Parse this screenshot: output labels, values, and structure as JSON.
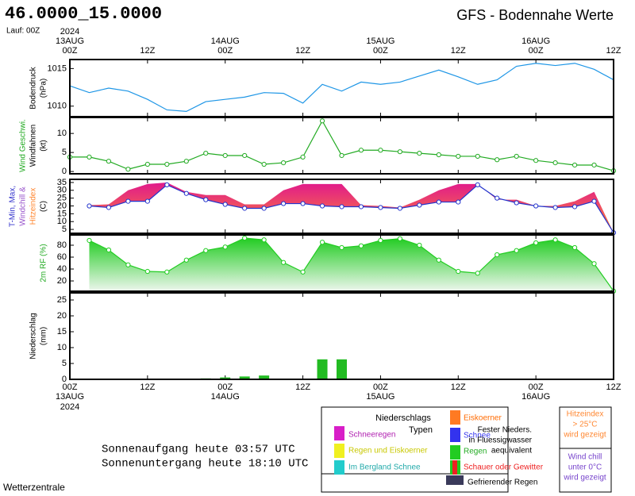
{
  "header": {
    "location": "46.0000_15.0000",
    "run": "Lauf: 00Z",
    "title": "GFS - Bodennahe Werte"
  },
  "time_axis": {
    "xlim": [
      0,
      84
    ],
    "xticks": [
      {
        "value": 0,
        "label": "00Z"
      },
      {
        "value": 12,
        "label": "12Z"
      },
      {
        "value": 24,
        "label": "00Z"
      },
      {
        "value": 36,
        "label": "12Z"
      },
      {
        "value": 48,
        "label": "00Z"
      },
      {
        "value": 60,
        "label": "12Z"
      },
      {
        "value": 72,
        "label": "00Z"
      },
      {
        "value": 84,
        "label": "12Z"
      }
    ],
    "dates": [
      {
        "value": 0,
        "label": "13AUG"
      },
      {
        "value": 24,
        "label": "14AUG"
      },
      {
        "value": 48,
        "label": "15AUG"
      },
      {
        "value": 72,
        "label": "16AUG"
      }
    ],
    "year": "2024"
  },
  "chart_data": [
    {
      "type": "line",
      "ylabel": [
        "Bodendruck",
        "(hPa)"
      ],
      "ylabel_colors": [
        "#000",
        "#000"
      ],
      "color": "#1e96e6",
      "markers": false,
      "x": [
        0,
        3,
        6,
        9,
        12,
        15,
        18,
        21,
        24,
        27,
        30,
        33,
        36,
        39,
        42,
        45,
        48,
        51,
        54,
        57,
        60,
        63,
        66,
        69,
        72,
        75,
        78,
        81,
        84
      ],
      "values": [
        1012.7,
        1011.8,
        1012.4,
        1012.0,
        1010.9,
        1009.5,
        1009.3,
        1010.6,
        1010.9,
        1011.2,
        1011.8,
        1011.7,
        1010.4,
        1012.9,
        1012.0,
        1013.2,
        1012.9,
        1013.2,
        1014.0,
        1014.8,
        1013.9,
        1012.9,
        1013.5,
        1015.3,
        1015.7,
        1015.4,
        1015.7,
        1014.9,
        1013.5
      ],
      "ylim": [
        1008.6,
        1016.2
      ],
      "yticks": [
        1010,
        1015
      ]
    },
    {
      "type": "line",
      "ylabel": [
        "Wind Geschwi.",
        "Windfahnen",
        "(kt)"
      ],
      "ylabel_colors": [
        "#22aa22",
        "#000",
        "#000"
      ],
      "color": "#22aa22",
      "markers": true,
      "x": [
        0,
        3,
        6,
        9,
        12,
        15,
        18,
        21,
        24,
        27,
        30,
        33,
        36,
        39,
        42,
        45,
        48,
        51,
        54,
        57,
        60,
        63,
        66,
        69,
        72,
        75,
        78,
        81,
        84
      ],
      "values": [
        3.8,
        3.8,
        2.7,
        0.6,
        1.9,
        1.9,
        2.7,
        4.8,
        4.2,
        4.2,
        1.9,
        2.3,
        3.8,
        13.3,
        4.2,
        5.6,
        5.6,
        5.2,
        4.8,
        4.4,
        4.0,
        4.0,
        3.1,
        4.0,
        2.9,
        2.3,
        1.7,
        1.7,
        0.2
      ],
      "ylim": [
        -0.6,
        14.2
      ],
      "yticks": [
        0,
        5,
        10
      ]
    },
    {
      "type": "band",
      "ylabel": [
        "T-Min, Max,",
        "Windchill &",
        "Hitzeindex",
        "(C)"
      ],
      "ylabel_colors": [
        "#3333cc",
        "#9955cc",
        "#ff8833",
        "#000"
      ],
      "color": "#2233cc",
      "markers": true,
      "upper_colors": [
        "#e0198c",
        "#ff8833"
      ],
      "x": [
        0,
        3,
        6,
        9,
        12,
        15,
        18,
        21,
        24,
        27,
        30,
        33,
        36,
        39,
        42,
        45,
        48,
        51,
        54,
        57,
        60,
        63,
        66,
        69,
        72,
        75,
        78,
        81,
        84
      ],
      "values": [
        null,
        20,
        19,
        23,
        23,
        33.5,
        28,
        24,
        21,
        18.5,
        18.5,
        21.5,
        21.5,
        20,
        19.5,
        19.5,
        19,
        18.5,
        20.5,
        22.5,
        22.5,
        33.5,
        25,
        22,
        20,
        19,
        19.5,
        23,
        2.9
      ],
      "upper_values": [
        null,
        20.5,
        21,
        30,
        34,
        35,
        29,
        27,
        27,
        21,
        21,
        30,
        34,
        34,
        34,
        20.5,
        20,
        19,
        24,
        30,
        34,
        34,
        24,
        24,
        20,
        20,
        23,
        29,
        3
      ],
      "ylim": [
        2.5,
        37
      ],
      "yticks": [
        5,
        10,
        15,
        20,
        25,
        30,
        35
      ]
    },
    {
      "type": "area",
      "ylabel": [
        "2m RF (%)"
      ],
      "ylabel_colors": [
        "#22aa22"
      ],
      "color": "#22cc22",
      "markers": true,
      "x": [
        0,
        3,
        6,
        9,
        12,
        15,
        18,
        21,
        24,
        27,
        30,
        33,
        36,
        39,
        42,
        45,
        48,
        51,
        54,
        57,
        60,
        63,
        66,
        69,
        72,
        75,
        78,
        81,
        84
      ],
      "values": [
        null,
        88,
        72,
        47,
        36,
        35,
        55,
        71,
        77,
        92,
        89,
        51,
        35,
        85,
        76,
        79,
        88,
        91,
        80,
        55,
        36,
        33,
        64,
        71,
        84,
        89,
        76,
        49,
        3
      ],
      "ylim": [
        2.7,
        97.3
      ],
      "yticks": [
        20,
        40,
        60,
        80
      ]
    },
    {
      "type": "bar",
      "ylabel": [
        "Niederschlag",
        "(mm)"
      ],
      "ylabel_colors": [
        "#000",
        "#000"
      ],
      "color": "#22bb22",
      "x": [
        21,
        24,
        27,
        30,
        39,
        42
      ],
      "values": [
        0.3,
        0.6,
        0.9,
        1.2,
        6.3,
        6.3
      ],
      "ylim": [
        0,
        27.25
      ],
      "yticks": [
        0,
        5,
        10,
        15,
        20,
        25
      ]
    }
  ],
  "sun": {
    "rise": "Sonnenaufgang heute 03:57 UTC",
    "set": "Sonnenuntergang heute 18:10 UTC"
  },
  "legend": {
    "title": [
      "Niederschlags",
      "Typen"
    ],
    "schneeregen": "Schneeregen",
    "regen_eis": "Regen und Eiskoerner",
    "bergland": "Im Bergland Schnee",
    "eiskoerner": "Eiskoerner",
    "schnee": "Schnee",
    "fester": [
      "Fester Nieders.",
      "in Fluessigwasser",
      "aequivalent"
    ],
    "regen": "Regen",
    "schauer": "Schauer oder Gewitter",
    "gefrierend": "Gefrierender Regen"
  },
  "notes": {
    "hitze": [
      "Hitzeindex",
      "> 25°C",
      "wird gezeigt"
    ],
    "chill": [
      "Wind chill",
      "unter 0°C",
      "wird gezeigt"
    ]
  },
  "footer": "Wetterzentrale"
}
